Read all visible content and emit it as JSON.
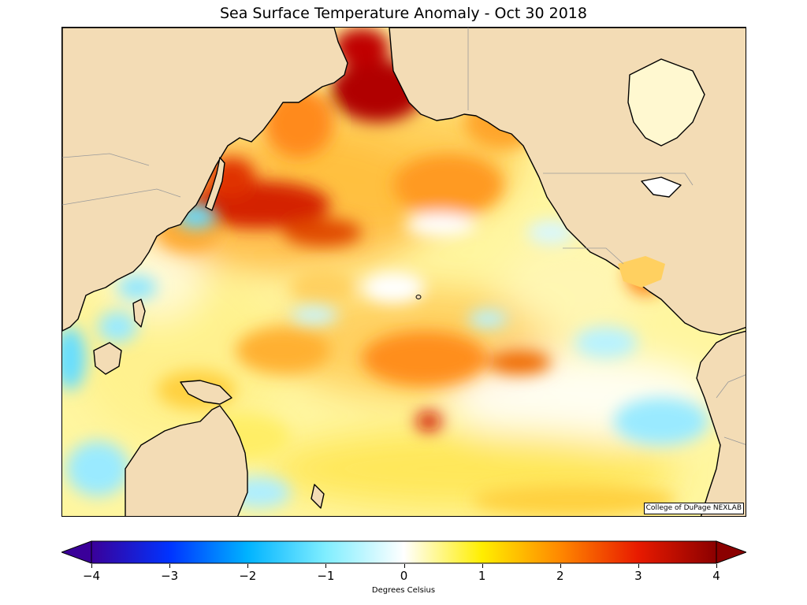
{
  "map": {
    "title": "Sea Surface Temperature Anomaly - Oct 30 2018",
    "credit": "College of DuPage NEXLAB",
    "land_color": "#f3dcb5",
    "coast_color": "#000000",
    "border_color": "#9a9a9a"
  },
  "colorbar": {
    "title": "Degrees Celsius",
    "min": -4,
    "max": 4,
    "extend": "both",
    "ticks": [
      "−4",
      "−3",
      "−2",
      "−1",
      "0",
      "1",
      "2",
      "3",
      "4"
    ],
    "colors": [
      "#3a0099",
      "#0033ff",
      "#00b3ff",
      "#80eeff",
      "#ffffff",
      "#ffee00",
      "#ff8800",
      "#e81a00",
      "#8b0000"
    ]
  }
}
